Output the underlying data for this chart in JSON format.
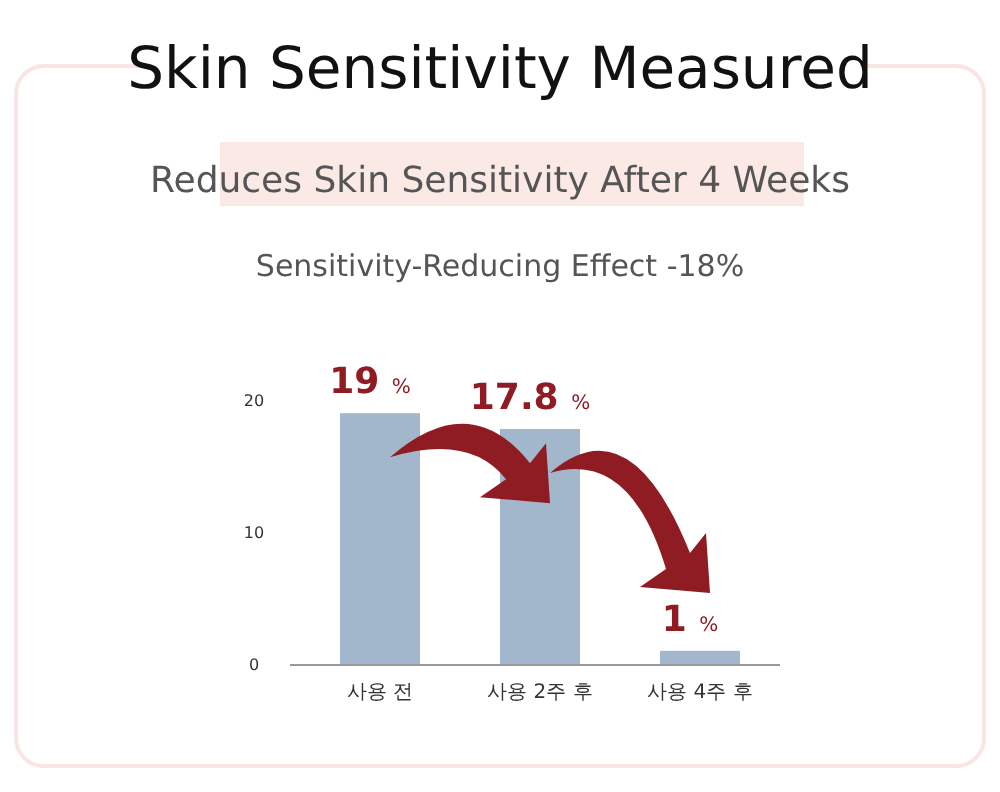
{
  "chart_data": {
    "type": "bar",
    "title": "Skin Sensitivity Measured",
    "subtitle": "Reduces Skin Sensitivity After 4 Weeks",
    "annotations": [
      "Sensitivity-Reducing Effect -18%"
    ],
    "categories": [
      "사용 전",
      "사용 2주 후",
      "사용 4주 후"
    ],
    "values": [
      19,
      17.8,
      1
    ],
    "color": "#a3b7cc",
    "ylim": [
      0,
      20
    ],
    "yticks": [
      0,
      10,
      20
    ],
    "value_labels": [
      "19 %",
      "17.8 %",
      "1 %"
    ],
    "grid": false
  }
}
